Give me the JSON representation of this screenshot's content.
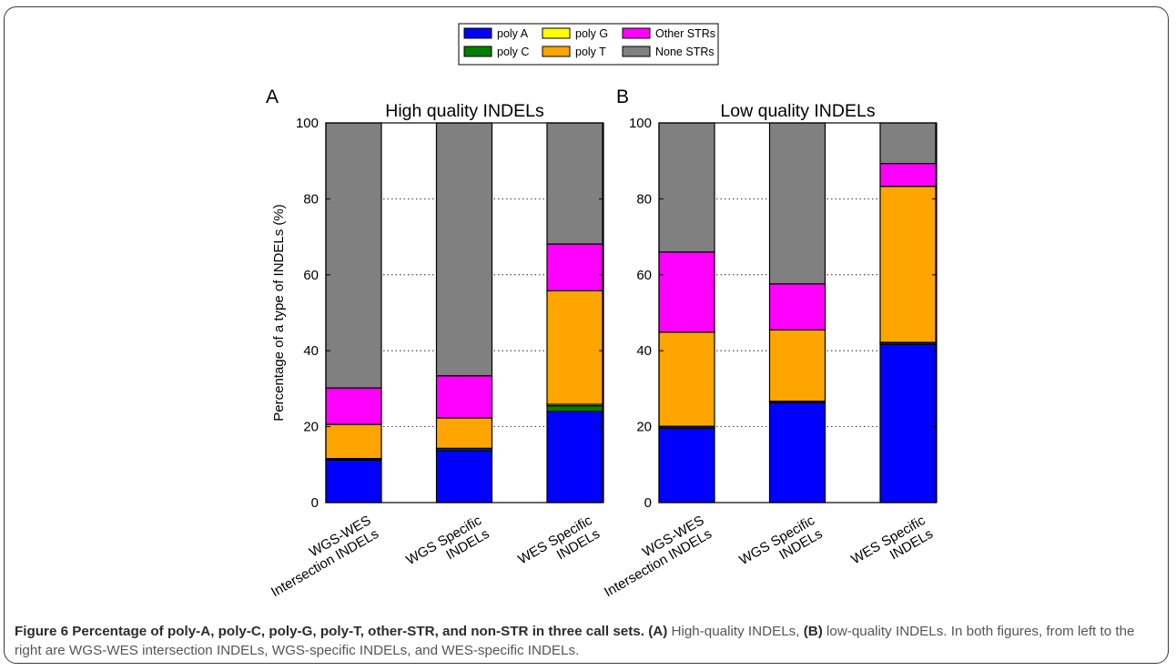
{
  "legend": [
    {
      "name": "poly A",
      "color": "#0000ff"
    },
    {
      "name": "poly G",
      "color": "#ffff00"
    },
    {
      "name": "Other STRs",
      "color": "#ff00ff"
    },
    {
      "name": "poly C",
      "color": "#008000"
    },
    {
      "name": "poly T",
      "color": "#ffa500"
    },
    {
      "name": "None STRs",
      "color": "#808080"
    }
  ],
  "chart_data": [
    {
      "type": "bar",
      "stacked": true,
      "panel_label": "A",
      "title": "High quality INDELs",
      "ylabel": "Percentage of a type of INDELs (%)",
      "ylim": [
        0,
        100
      ],
      "yticks": [
        0,
        20,
        40,
        60,
        80,
        100
      ],
      "grid": "horizontal dotted",
      "categories": [
        [
          "WGS-WES",
          "Intersection INDELs"
        ],
        [
          "WGS Specific",
          "INDELs"
        ],
        [
          "WES Specific",
          "INDELs"
        ]
      ],
      "series": [
        {
          "name": "poly A",
          "color": "#0000ff",
          "values": [
            11.2,
            13.7,
            24.0
          ]
        },
        {
          "name": "poly C",
          "color": "#008000",
          "values": [
            0.3,
            0.5,
            1.5
          ]
        },
        {
          "name": "poly G",
          "color": "#ffff00",
          "values": [
            0.1,
            0.1,
            0.4
          ]
        },
        {
          "name": "poly T",
          "color": "#ffa500",
          "values": [
            9.0,
            8.0,
            29.9
          ]
        },
        {
          "name": "Other STRs",
          "color": "#ff00ff",
          "values": [
            9.6,
            11.1,
            12.3
          ]
        },
        {
          "name": "None STRs",
          "color": "#808080",
          "values": [
            69.8,
            66.6,
            31.9
          ]
        }
      ]
    },
    {
      "type": "bar",
      "stacked": true,
      "panel_label": "B",
      "title": "Low quality INDELs",
      "ylabel": "",
      "ylim": [
        0,
        100
      ],
      "yticks": [
        0,
        20,
        40,
        60,
        80,
        100
      ],
      "grid": "horizontal dotted",
      "categories": [
        [
          "WGS-WES",
          "Intersection INDELs"
        ],
        [
          "WGS Specific",
          "INDELs"
        ],
        [
          "WES Specific",
          "INDELs"
        ]
      ],
      "series": [
        {
          "name": "poly A",
          "color": "#0000ff",
          "values": [
            19.6,
            26.3,
            41.7
          ]
        },
        {
          "name": "poly C",
          "color": "#008000",
          "values": [
            0.4,
            0.3,
            0.4
          ]
        },
        {
          "name": "poly G",
          "color": "#ffff00",
          "values": [
            0.1,
            0.1,
            0.1
          ]
        },
        {
          "name": "poly T",
          "color": "#ffa500",
          "values": [
            24.8,
            18.8,
            41.1
          ]
        },
        {
          "name": "Other STRs",
          "color": "#ff00ff",
          "values": [
            21.1,
            12.1,
            6.0
          ]
        },
        {
          "name": "None STRs",
          "color": "#808080",
          "values": [
            34.0,
            42.4,
            10.7
          ]
        }
      ]
    }
  ],
  "caption": {
    "bold": "Figure 6 Percentage of poly-A, poly-C, poly-G, poly-T, other-STR, and non-STR in three call sets.",
    "a_label": "(A)",
    "a_text": " High-quality INDELs, ",
    "b_label": "(B)",
    "b_text": " low-quality INDELs. In both figures, from left to the right are WGS-WES intersection INDELs, WGS-specific INDELs, and WES-specific INDELs."
  }
}
